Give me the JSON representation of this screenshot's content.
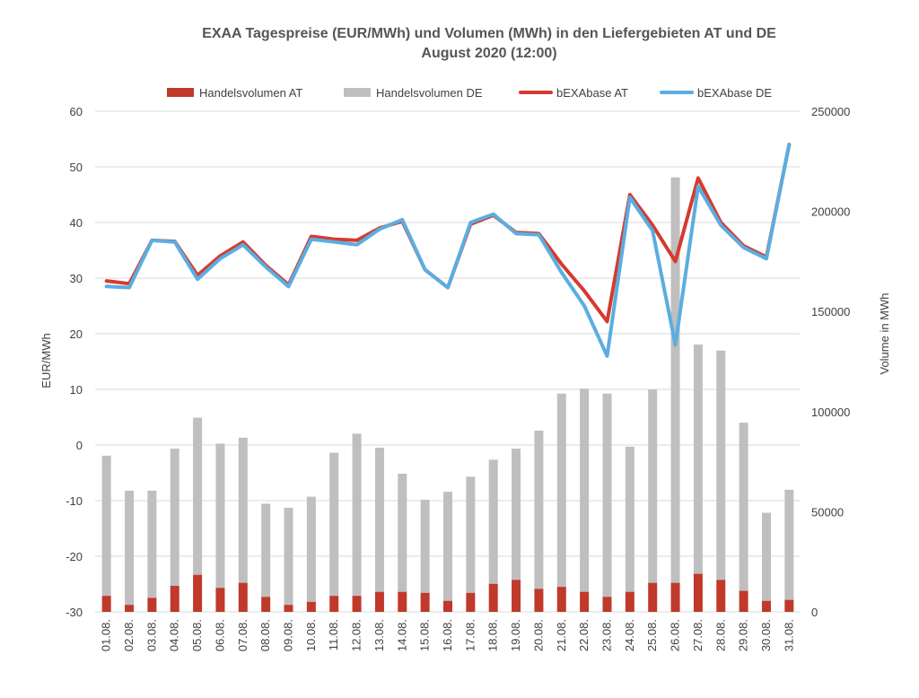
{
  "chart_data": {
    "type": "bar+line",
    "title": "EXAA Tagespreise (EUR/MWh) und Volumen (MWh) in den Liefergebieten AT und DE",
    "subtitle": "August 2020 (12:00)",
    "categories": [
      "01.08.",
      "02.08.",
      "03.08.",
      "04.08.",
      "05.08.",
      "06.08.",
      "07.08.",
      "08.08.",
      "09.08.",
      "10.08.",
      "11.08.",
      "12.08.",
      "13.08.",
      "14.08.",
      "15.08.",
      "16.08.",
      "17.08.",
      "18.08.",
      "19.08.",
      "20.08.",
      "21.08.",
      "22.08.",
      "23.08.",
      "24.08.",
      "25.08.",
      "26.08.",
      "27.08.",
      "28.08.",
      "29.08.",
      "30.08.",
      "31.08."
    ],
    "ylabel_left": "EUR/MWh",
    "ylabel_right": "Volume in MWh",
    "ylim_left": [
      -30,
      60
    ],
    "yticks_left": [
      "60",
      "50",
      "40",
      "30",
      "20",
      "10",
      "0",
      "-10",
      "-20",
      "-30"
    ],
    "ylim_right": [
      0,
      250000
    ],
    "yticks_right": [
      "250000",
      "200000",
      "150000",
      "100000",
      "50000",
      "0"
    ],
    "legend": [
      {
        "name": "Handelsvolumen AT",
        "kind": "bar",
        "color": "#c0392b"
      },
      {
        "name": "Handelsvolumen DE",
        "kind": "bar",
        "color": "#bfbfbf"
      },
      {
        "name": "bEXAbase AT",
        "kind": "line",
        "color": "#d63a2f"
      },
      {
        "name": "bEXAbase DE",
        "kind": "line",
        "color": "#5aaee0"
      }
    ],
    "series": [
      {
        "name": "Handelsvolumen AT",
        "axis": "right",
        "type": "bar",
        "color": "#c0392b",
        "values": [
          8000,
          3500,
          7000,
          13000,
          18500,
          12000,
          14500,
          7500,
          3500,
          5000,
          8000,
          8000,
          10000,
          10000,
          9500,
          5500,
          9500,
          14000,
          16000,
          11500,
          12500,
          10000,
          7500,
          10000,
          14500,
          14500,
          19000,
          16000,
          10500,
          5500,
          6000
        ]
      },
      {
        "name": "Handelsvolumen DE",
        "axis": "right",
        "type": "bar",
        "color": "#bfbfbf",
        "values": [
          70000,
          57000,
          53500,
          68500,
          78500,
          72000,
          72500,
          46500,
          48500,
          52500,
          71500,
          81000,
          72000,
          59000,
          46500,
          54500,
          58000,
          62000,
          65500,
          79000,
          96500,
          101500,
          101500,
          72500,
          96500,
          202500,
          114500,
          114500,
          84000,
          44000,
          55000
        ]
      },
      {
        "name": "bEXAbase AT",
        "axis": "left",
        "type": "line",
        "color": "#d63a2f",
        "values": [
          29.5,
          29.0,
          36.8,
          36.6,
          30.5,
          34.0,
          36.5,
          32.3,
          28.8,
          37.5,
          37.0,
          36.8,
          39.0,
          40.2,
          31.5,
          28.3,
          39.7,
          41.3,
          38.2,
          38.0,
          32.5,
          27.7,
          22.2,
          45.0,
          39.5,
          33.0,
          48.0,
          40.0,
          35.8,
          33.8,
          54.0
        ]
      },
      {
        "name": "bEXAbase DE",
        "axis": "left",
        "type": "line",
        "color": "#5aaee0",
        "values": [
          28.5,
          28.3,
          36.8,
          36.5,
          29.8,
          33.5,
          36.0,
          32.0,
          28.5,
          37.0,
          36.5,
          36.0,
          38.8,
          40.5,
          31.5,
          28.3,
          40.0,
          41.5,
          38.0,
          37.8,
          31.0,
          25.0,
          16.0,
          44.5,
          38.5,
          18.0,
          46.5,
          39.5,
          35.5,
          33.5,
          54.0
        ]
      }
    ]
  }
}
